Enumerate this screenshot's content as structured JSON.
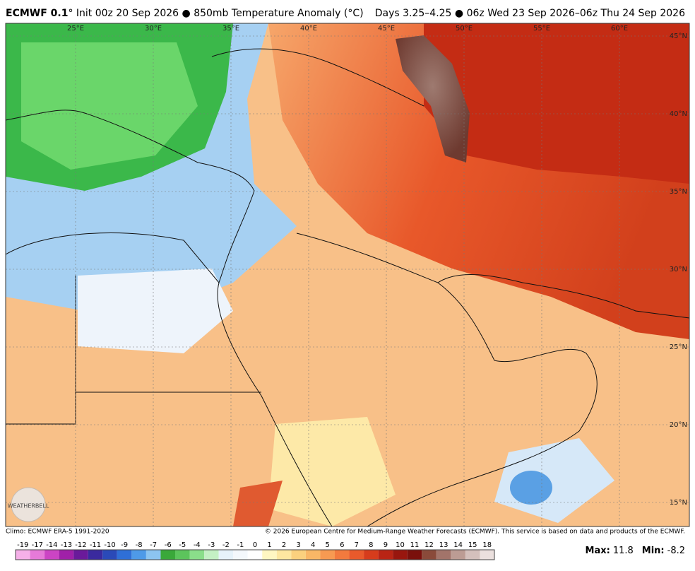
{
  "header": {
    "model": "ECMWF 0.1",
    "title": "° Init 00z 20 Sep 2026 ● 850mb Temperature Anomaly (°C)",
    "valid": "Days 3.25–4.25 ● 06z Wed 23 Sep 2026–06z Thu 24 Sep 2026"
  },
  "map": {
    "lon_labels": [
      "25°E",
      "30°E",
      "35°E",
      "40°E",
      "45°E",
      "50°E",
      "55°E",
      "60°E"
    ],
    "lat_labels": [
      "45°N",
      "40°N",
      "35°N",
      "30°N",
      "25°N",
      "20°N",
      "15°N"
    ],
    "logo": "WEATHERBELL"
  },
  "footer": {
    "climo": "Climo: ECMWF ERA-5 1991-2020",
    "copyright": "© 2026 European Centre for Medium-Range Weather Forecasts (ECMWF). This service is based on data and products of the ECMWF."
  },
  "colorbar": {
    "labels": [
      -19,
      -17,
      -14,
      -13,
      -12,
      -11,
      -10,
      -9,
      -8,
      -7,
      -6,
      -5,
      -4,
      -3,
      -2,
      -1,
      0,
      1,
      2,
      3,
      4,
      5,
      6,
      7,
      8,
      9,
      10,
      11,
      12,
      13,
      14,
      15,
      18
    ],
    "colors": [
      "#f5b0e8",
      "#e67ad8",
      "#cc44c4",
      "#a020a8",
      "#6a1a9a",
      "#3a2a9e",
      "#2a4ab8",
      "#2f6fd6",
      "#4e9ae8",
      "#8cc4f0",
      "#3aa83a",
      "#5cc45c",
      "#8ade8a",
      "#c4f0c4",
      "#e6f2fa",
      "#f4f8fc",
      "#ffffff",
      "#fff7c2",
      "#fde7a0",
      "#fbd17e",
      "#f9b766",
      "#f79a52",
      "#f27a3e",
      "#e95a2c",
      "#d63c1c",
      "#b92414",
      "#98160e",
      "#7a100c",
      "#8a4a3a",
      "#a2746a",
      "#bc9c94",
      "#d4c0bc",
      "#ebe0de"
    ]
  },
  "stats": {
    "max_label": "Max:",
    "max": 11.8,
    "min_label": "Min:",
    "min": -8.2
  }
}
